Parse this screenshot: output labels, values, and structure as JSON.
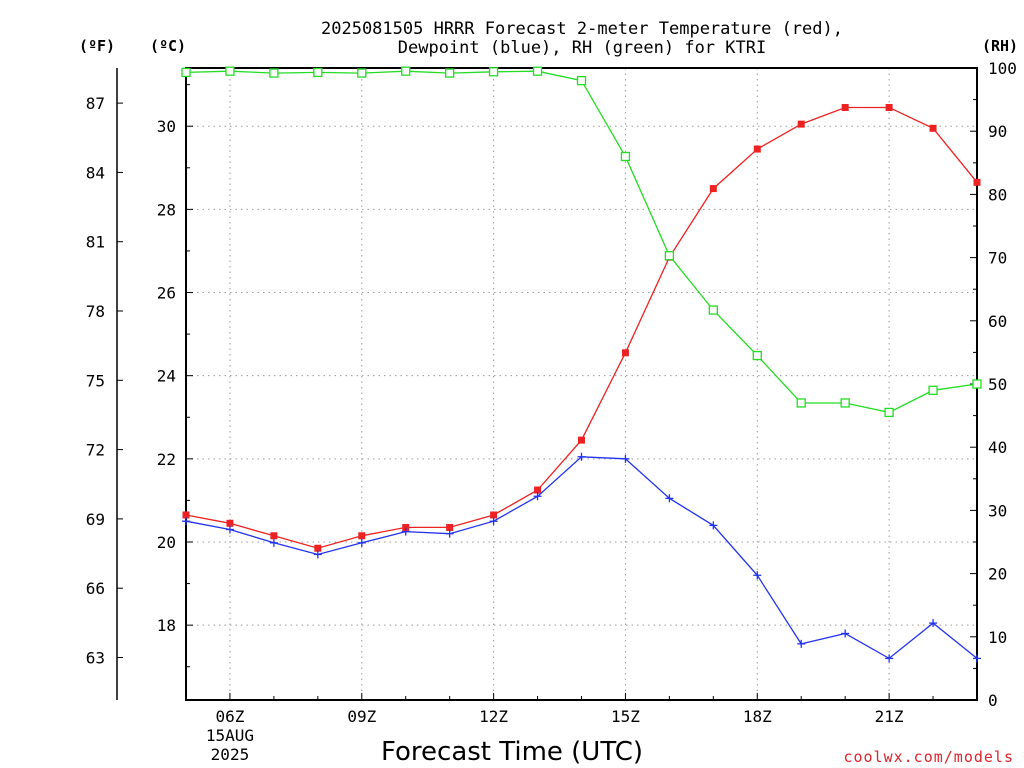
{
  "chart_data": {
    "type": "line",
    "title_lines": [
      "2025081505 HRRR Forecast 2-meter Temperature (red),",
      "Dewpoint (blue), RH (green) for KTRI"
    ],
    "xlabel": "Forecast Time (UTC)",
    "credit": "coolwx.com/models",
    "unit_labels": {
      "fahrenheit": "(ºF)",
      "celsius": "(ºC)",
      "rh": "(RH)"
    },
    "x_hours": [
      5,
      6,
      7,
      8,
      9,
      10,
      11,
      12,
      13,
      14,
      15,
      16,
      17,
      18,
      19,
      20,
      21,
      22,
      23
    ],
    "xlim": [
      5,
      23
    ],
    "x_ticks": [
      {
        "hour": 6,
        "label": "06Z",
        "sub": [
          "15AUG",
          "2025"
        ]
      },
      {
        "hour": 9,
        "label": "09Z"
      },
      {
        "hour": 12,
        "label": "12Z"
      },
      {
        "hour": 15,
        "label": "15Z"
      },
      {
        "hour": 18,
        "label": "18Z"
      },
      {
        "hour": 21,
        "label": "21Z"
      }
    ],
    "celsius_axis": {
      "ylim": [
        16.2,
        31.4
      ],
      "ticks": [
        "18",
        "20",
        "22",
        "24",
        "26",
        "28",
        "30"
      ]
    },
    "fahrenheit_axis": {
      "ticks": [
        "63",
        "66",
        "69",
        "72",
        "75",
        "78",
        "81",
        "84",
        "87"
      ]
    },
    "rh_axis": {
      "ylim": [
        0,
        100
      ],
      "ticks": [
        "0",
        "10",
        "20",
        "30",
        "40",
        "50",
        "60",
        "70",
        "80",
        "90",
        "100"
      ]
    },
    "grid": true,
    "series": [
      {
        "name": "Temperature",
        "axis": "celsius",
        "color": "#ee2222",
        "marker": "filled-square",
        "values": [
          20.65,
          20.45,
          20.15,
          19.85,
          20.15,
          20.35,
          20.35,
          20.65,
          21.25,
          22.45,
          24.55,
          26.85,
          28.5,
          29.45,
          30.05,
          30.45,
          30.45,
          29.95,
          28.65
        ]
      },
      {
        "name": "Dewpoint",
        "axis": "celsius",
        "color": "#2233ee",
        "marker": "plus",
        "values": [
          20.5,
          20.3,
          19.98,
          19.7,
          19.98,
          20.25,
          20.2,
          20.5,
          21.1,
          22.05,
          22.0,
          21.05,
          20.4,
          19.2,
          17.55,
          17.8,
          17.2,
          18.05,
          17.2
        ]
      },
      {
        "name": "RH",
        "axis": "rh",
        "color": "#22dd22",
        "marker": "open-square",
        "values": [
          99.3,
          99.5,
          99.2,
          99.3,
          99.2,
          99.5,
          99.2,
          99.4,
          99.5,
          98.0,
          86.0,
          70.3,
          61.7,
          54.5,
          47.0,
          47.0,
          45.5,
          49.0,
          50.0
        ]
      }
    ]
  }
}
